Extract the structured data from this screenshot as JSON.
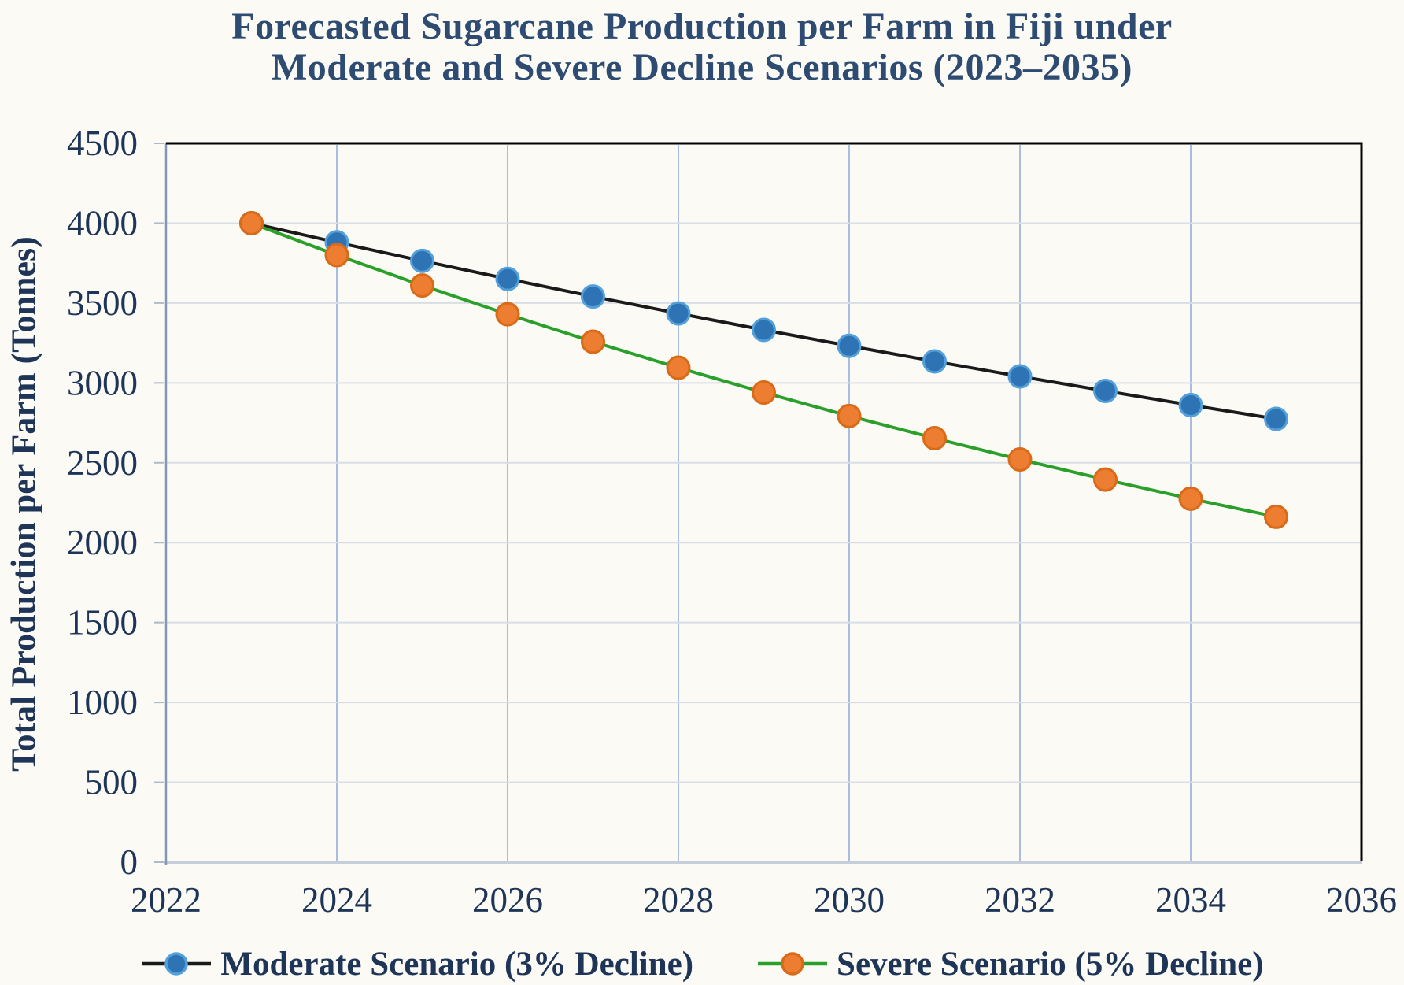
{
  "title": {
    "line1": "Forecasted Sugarcane Production per Farm in Fiji under",
    "line2": "Moderate and Severe Decline Scenarios (2023–2035)"
  },
  "chart_data": {
    "type": "line",
    "title": "Forecasted Sugarcane Production per Farm in Fiji under Moderate and Severe Decline Scenarios (2023–2035)",
    "xlabel": "",
    "ylabel": "Total Production per Farm (Tonnes)",
    "x": [
      2023,
      2024,
      2025,
      2026,
      2027,
      2028,
      2029,
      2030,
      2031,
      2032,
      2033,
      2034,
      2035
    ],
    "series": [
      {
        "key": "moderate",
        "name": "Moderate Scenario (3% Decline)",
        "line_color": "#1a1a1a",
        "marker_fill": "#2e74b5",
        "marker_stroke": "#54a0da",
        "values": [
          4000,
          3880,
          3764,
          3651,
          3541,
          3435,
          3332,
          3232,
          3135,
          3041,
          2950,
          2861,
          2775
        ]
      },
      {
        "key": "severe",
        "name": "Severe Scenario (5% Decline)",
        "line_color": "#2aa02a",
        "marker_fill": "#ed7d31",
        "marker_stroke": "#d96a18",
        "values": [
          4000,
          3800,
          3610,
          3430,
          3258,
          3095,
          2940,
          2793,
          2654,
          2521,
          2395,
          2275,
          2162
        ]
      }
    ],
    "x_axis": {
      "range": [
        2022,
        2036
      ],
      "ticks": [
        2022,
        2024,
        2026,
        2028,
        2030,
        2032,
        2034,
        2036
      ]
    },
    "y_axis": {
      "range": [
        0,
        4500
      ],
      "ticks": [
        0,
        500,
        1000,
        1500,
        2000,
        2500,
        3000,
        3500,
        4000,
        4500
      ]
    },
    "grid": true,
    "legend_position": "bottom"
  },
  "colors": {
    "background": "#fbfaf5",
    "title_text": "#2e4b72",
    "axis_text": "#1e3557",
    "grid_vertical": "#a9bedf",
    "grid_horizontal": "#d9dee6",
    "axis_left": "#8498b4",
    "axis_bottom": "#c7cedb",
    "plot_border": "#000000"
  }
}
